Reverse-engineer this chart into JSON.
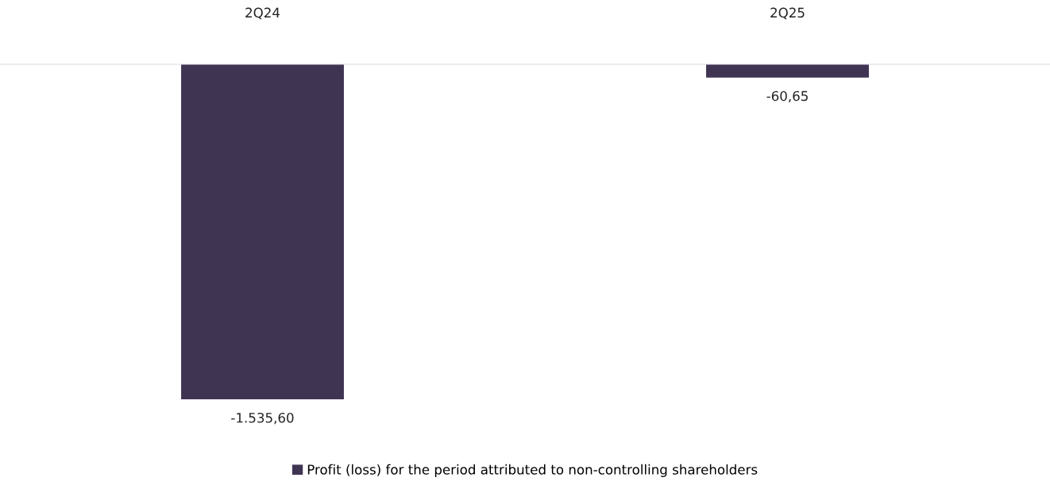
{
  "chart_data": {
    "type": "bar",
    "categories": [
      "2Q24",
      "2Q25"
    ],
    "series": [
      {
        "name": "Profit (loss) for the period attributed to non-controlling shareholders",
        "color": "#3f3553",
        "values": [
          -1535.6,
          -60.65
        ],
        "value_labels": [
          "-1.535,60",
          "-60,65"
        ]
      }
    ],
    "legend": "bottom",
    "grid": false
  }
}
